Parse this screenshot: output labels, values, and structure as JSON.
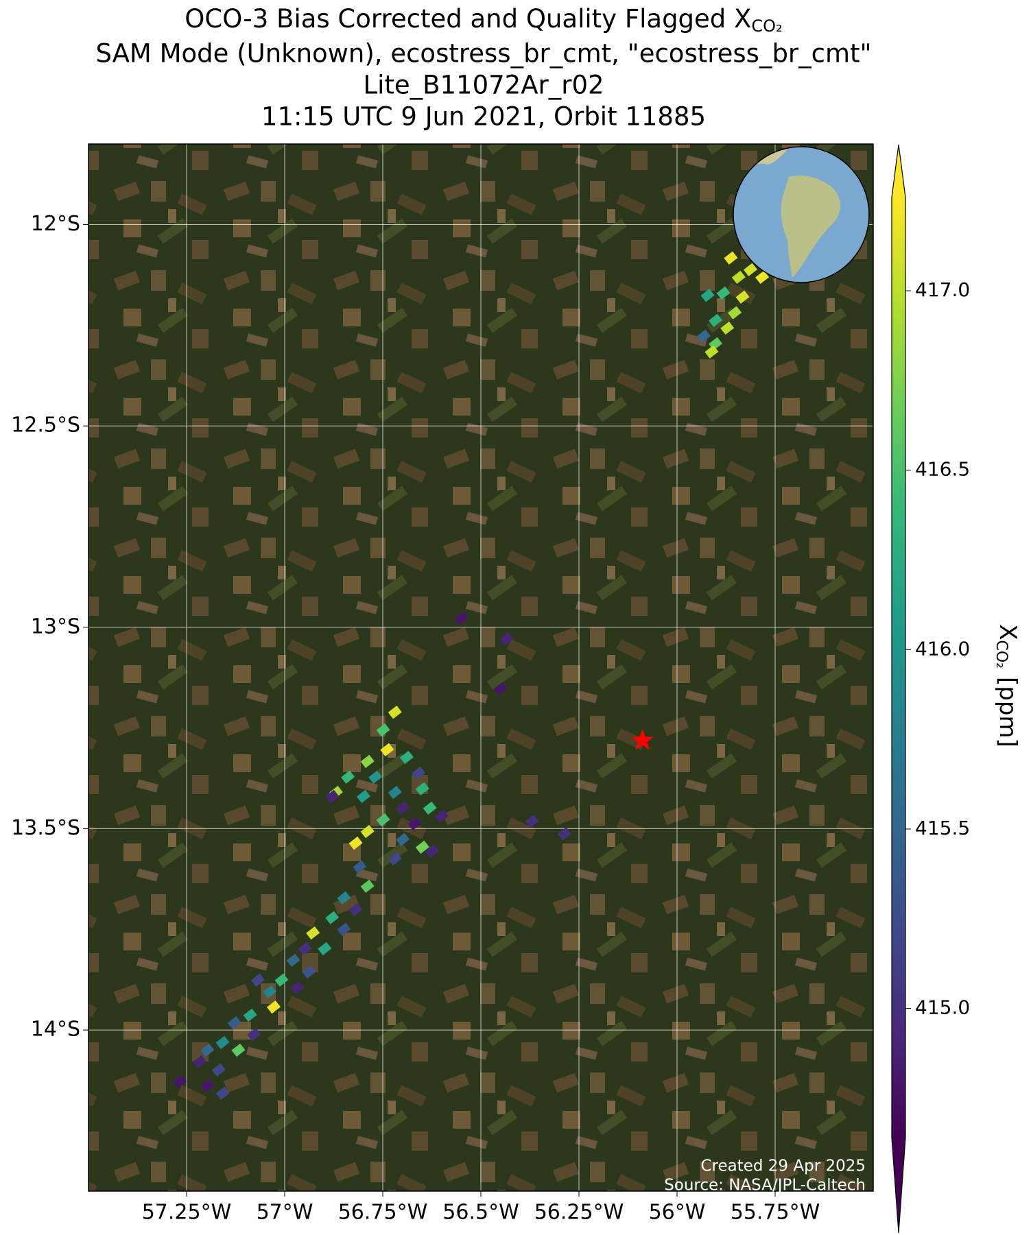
{
  "chart_data": {
    "type": "scatter",
    "title": [
      "OCO-3 Bias Corrected and Quality Flagged X",
      "SAM Mode (Unknown), ecostress_br_cmt, \"ecostress_br_cmt\"",
      "Lite_B11072Ar_r02",
      "11:15 UTC 9 Jun 2021, Orbit 11885"
    ],
    "title_subscript": "CO₂",
    "xlim": [
      -57.5,
      -55.5
    ],
    "ylim": [
      -14.4,
      -11.8
    ],
    "xticks": [
      {
        "value": -57.25,
        "label": "57.25°W"
      },
      {
        "value": -57,
        "label": "57°W"
      },
      {
        "value": -56.75,
        "label": "56.75°W"
      },
      {
        "value": -56.5,
        "label": "56.5°W"
      },
      {
        "value": -56.25,
        "label": "56.25°W"
      },
      {
        "value": -56,
        "label": "56°W"
      },
      {
        "value": -55.75,
        "label": "55.75°W"
      }
    ],
    "yticks": [
      {
        "value": -12,
        "label": "12°S"
      },
      {
        "value": -12.5,
        "label": "12.5°S"
      },
      {
        "value": -13,
        "label": "13°S"
      },
      {
        "value": -13.5,
        "label": "13.5°S"
      },
      {
        "value": -14,
        "label": "14°S"
      }
    ],
    "grid": true,
    "colormap": "viridis",
    "clim": [
      414.64,
      417.26
    ],
    "colorbar_ticks": [
      {
        "value": 415,
        "label": "415.0"
      },
      {
        "value": 415.5,
        "label": "415.5"
      },
      {
        "value": 416,
        "label": "416.0"
      },
      {
        "value": 416.5,
        "label": "416.5"
      },
      {
        "value": 417,
        "label": "417.0"
      }
    ],
    "colorbar_label": {
      "symbol": "X",
      "subscript": "CO₂",
      "units": "[ppm]"
    },
    "target": {
      "x": -56.088,
      "y": -13.281,
      "color": "#ff0000"
    },
    "annotations": [
      "Created 29 Apr 2025",
      "Source: NASA/JPL-Caltech"
    ],
    "x": [
      -55.863,
      -55.813,
      -55.783,
      -55.843,
      -55.882,
      -55.833,
      -55.922,
      -55.853,
      -55.902,
      -55.872,
      -55.932,
      -55.902,
      -55.912,
      -56.55,
      -56.434,
      -56.45,
      -56.37,
      -56.287,
      -56.6,
      -56.624,
      -56.719,
      -56.749,
      -56.739,
      -56.789,
      -56.689,
      -56.839,
      -56.769,
      -56.659,
      -56.869,
      -56.799,
      -56.719,
      -56.649,
      -56.879,
      -56.699,
      -56.63,
      -56.749,
      -56.669,
      -56.789,
      -56.699,
      -56.819,
      -56.649,
      -56.719,
      -56.809,
      -56.789,
      -56.849,
      -56.819,
      -56.879,
      -56.849,
      -56.928,
      -56.948,
      -56.898,
      -56.978,
      -56.938,
      -57.008,
      -56.968,
      -57.038,
      -57.068,
      -57.028,
      -57.088,
      -57.128,
      -57.078,
      -57.158,
      -57.118,
      -57.197,
      -57.217,
      -57.168,
      -57.267,
      -57.197,
      -57.158
    ],
    "y": [
      -12.083,
      -12.112,
      -12.131,
      -12.131,
      -12.17,
      -12.18,
      -12.176,
      -12.219,
      -12.238,
      -12.257,
      -12.277,
      -12.296,
      -12.316,
      -12.978,
      -13.029,
      -13.153,
      -13.482,
      -13.513,
      -13.469,
      -13.556,
      -13.211,
      -13.255,
      -13.304,
      -13.333,
      -13.323,
      -13.372,
      -13.372,
      -13.362,
      -13.41,
      -13.42,
      -13.41,
      -13.401,
      -13.42,
      -13.449,
      -13.449,
      -13.478,
      -13.488,
      -13.507,
      -13.527,
      -13.536,
      -13.546,
      -13.575,
      -13.595,
      -13.643,
      -13.672,
      -13.701,
      -13.721,
      -13.75,
      -13.759,
      -13.798,
      -13.798,
      -13.827,
      -13.856,
      -13.876,
      -13.895,
      -13.905,
      -13.876,
      -13.943,
      -13.963,
      -13.982,
      -14.011,
      -14.031,
      -14.05,
      -14.05,
      -14.079,
      -14.099,
      -14.128,
      -14.138,
      -14.157
    ],
    "values": [
      417.2,
      417.1,
      417.2,
      417.0,
      416.4,
      417.1,
      416.2,
      416.9,
      416.3,
      417.0,
      415.5,
      416.6,
      417.0,
      414.8,
      414.9,
      414.8,
      415.0,
      415.0,
      414.9,
      414.9,
      417.1,
      416.5,
      417.2,
      416.8,
      416.3,
      416.4,
      416.0,
      415.2,
      416.9,
      416.1,
      415.8,
      416.3,
      414.9,
      414.9,
      416.4,
      416.5,
      414.8,
      417.1,
      415.5,
      417.2,
      416.7,
      415.2,
      415.4,
      416.6,
      415.8,
      415.0,
      416.3,
      415.3,
      417.1,
      415.0,
      416.2,
      415.5,
      415.3,
      416.4,
      414.9,
      415.8,
      415.2,
      417.2,
      416.2,
      415.4,
      415.0,
      415.9,
      416.6,
      415.5,
      414.9,
      415.2,
      414.8,
      414.8,
      415.2
    ]
  }
}
